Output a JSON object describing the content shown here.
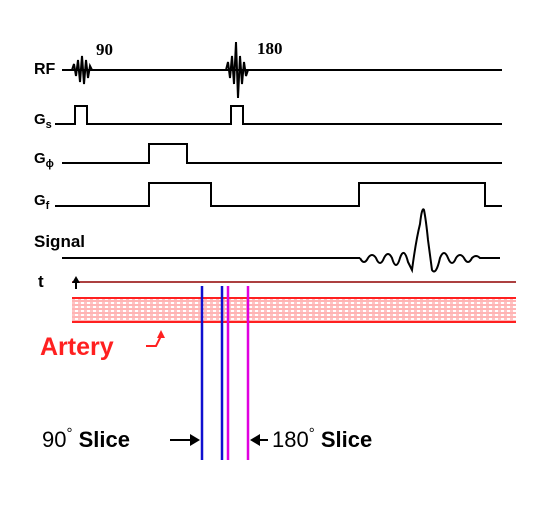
{
  "rf": {
    "label": "RF",
    "pulse_90_label": "90",
    "pulse_180_label": "180"
  },
  "gradients": {
    "slice": {
      "letter": "G",
      "subscript": "s"
    },
    "phase": {
      "letter": "G",
      "subscript": "ϕ"
    },
    "frequency": {
      "letter": "G",
      "subscript": "f"
    }
  },
  "signal": {
    "label": "Signal"
  },
  "time": {
    "label": "t"
  },
  "artery": {
    "label": "Artery"
  },
  "slices": {
    "slice_90": {
      "label_number": "90",
      "label_degree": "°",
      "label_word": "Slice",
      "color": "#1010d0"
    },
    "slice_180": {
      "label_number": "180",
      "label_degree": "°",
      "label_word": "Slice",
      "color": "#e000e0"
    }
  },
  "colors": {
    "artery": "#ff2020",
    "artery_hatch": "#ff6060",
    "time_axis": "#900000",
    "ink": "#000000"
  }
}
